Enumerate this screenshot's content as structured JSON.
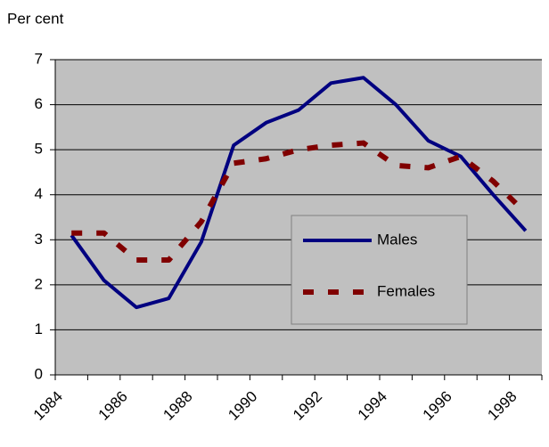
{
  "chart_data": {
    "type": "line",
    "y_label": "Per cent",
    "categories": [
      "1984",
      null,
      "1986",
      null,
      "1988",
      null,
      "1990",
      null,
      "1992",
      null,
      "1994",
      null,
      "1996",
      null,
      "1998"
    ],
    "series": [
      {
        "name": "Males",
        "color": "#000080",
        "style": "solid",
        "values": [
          3.1,
          2.1,
          1.5,
          1.7,
          2.95,
          5.1,
          5.6,
          5.88,
          6.48,
          6.6,
          6.0,
          5.2,
          4.85,
          4.0,
          3.2
        ]
      },
      {
        "name": "Females",
        "color": "#800000",
        "style": "dashed",
        "values": [
          3.15,
          3.15,
          2.55,
          2.55,
          3.4,
          4.7,
          4.8,
          5.0,
          5.1,
          5.15,
          4.65,
          4.6,
          4.85,
          4.3,
          3.6
        ]
      }
    ],
    "ylim": [
      0,
      7
    ],
    "yticks": [
      0,
      1,
      2,
      3,
      4,
      5,
      6,
      7
    ],
    "grid": true,
    "legend": "center-right"
  }
}
